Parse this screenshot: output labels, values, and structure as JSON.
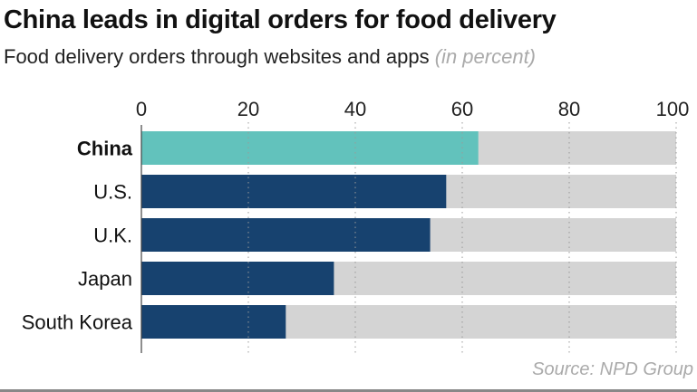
{
  "title": "China leads in digital orders for food delivery",
  "subtitle": "Food delivery orders through websites and apps",
  "unit_note": "(in percent)",
  "source": "Source: NPD Group",
  "colors": {
    "highlight": "#62c2bc",
    "bar": "#17426f",
    "track": "#d4d4d4",
    "grid": "#999999"
  },
  "chart_data": {
    "type": "bar",
    "orientation": "horizontal",
    "categories": [
      "China",
      "U.S.",
      "U.K.",
      "Japan",
      "South Korea"
    ],
    "values": [
      63,
      57,
      54,
      36,
      27
    ],
    "highlight": "China",
    "xlim": [
      0,
      100
    ],
    "xticks": [
      0,
      20,
      40,
      60,
      80,
      100
    ],
    "xaxis_position": "top",
    "grid": "vertical dotted",
    "background_track_to": 100
  }
}
